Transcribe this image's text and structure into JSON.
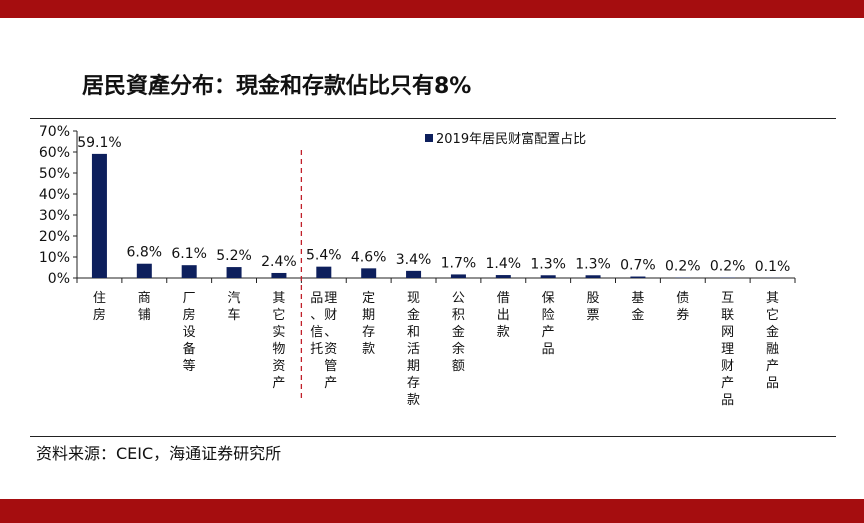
{
  "header": {
    "title": "居民資產分布：現金和存款佔比只有8%"
  },
  "footer": {
    "source": "资料来源：CEIC，海通证券研究所"
  },
  "colors": {
    "band": "#a50d0f",
    "bar": "#0d1f5c",
    "divider": "#c0202a"
  },
  "chart_data": {
    "type": "bar",
    "title": "",
    "xlabel": "",
    "ylabel": "",
    "ylim": [
      0,
      70
    ],
    "yticks": [
      "0%",
      "10%",
      "20%",
      "30%",
      "40%",
      "50%",
      "60%",
      "70%"
    ],
    "legend_position": "top-right",
    "grid": false,
    "categories": [
      [
        "住房"
      ],
      [
        "商铺"
      ],
      [
        "厂房设备等"
      ],
      [
        "汽车"
      ],
      [
        "其它实物资产"
      ],
      [
        "理财、资管产",
        "品、信托"
      ],
      [
        "定期存款"
      ],
      [
        "现金和活期存款"
      ],
      [
        "公积金余额"
      ],
      [
        "借出款"
      ],
      [
        "保险产品"
      ],
      [
        "股票"
      ],
      [
        "基金"
      ],
      [
        "债券"
      ],
      [
        "互联网理财产品"
      ],
      [
        "其它金融产品"
      ]
    ],
    "series": [
      {
        "name": "2019年居民财富配置占比",
        "values": [
          59.1,
          6.8,
          6.1,
          5.2,
          2.4,
          5.4,
          4.6,
          3.4,
          1.7,
          1.4,
          1.3,
          1.3,
          0.7,
          0.2,
          0.2,
          0.1
        ],
        "labels": [
          "59.1%",
          "6.8%",
          "6.1%",
          "5.2%",
          "2.4%",
          "5.4%",
          "4.6%",
          "3.4%",
          "1.7%",
          "1.4%",
          "1.3%",
          "1.3%",
          "0.7%",
          "0.2%",
          "0.2%",
          "0.1%"
        ]
      }
    ],
    "divider_after_category": 4
  }
}
